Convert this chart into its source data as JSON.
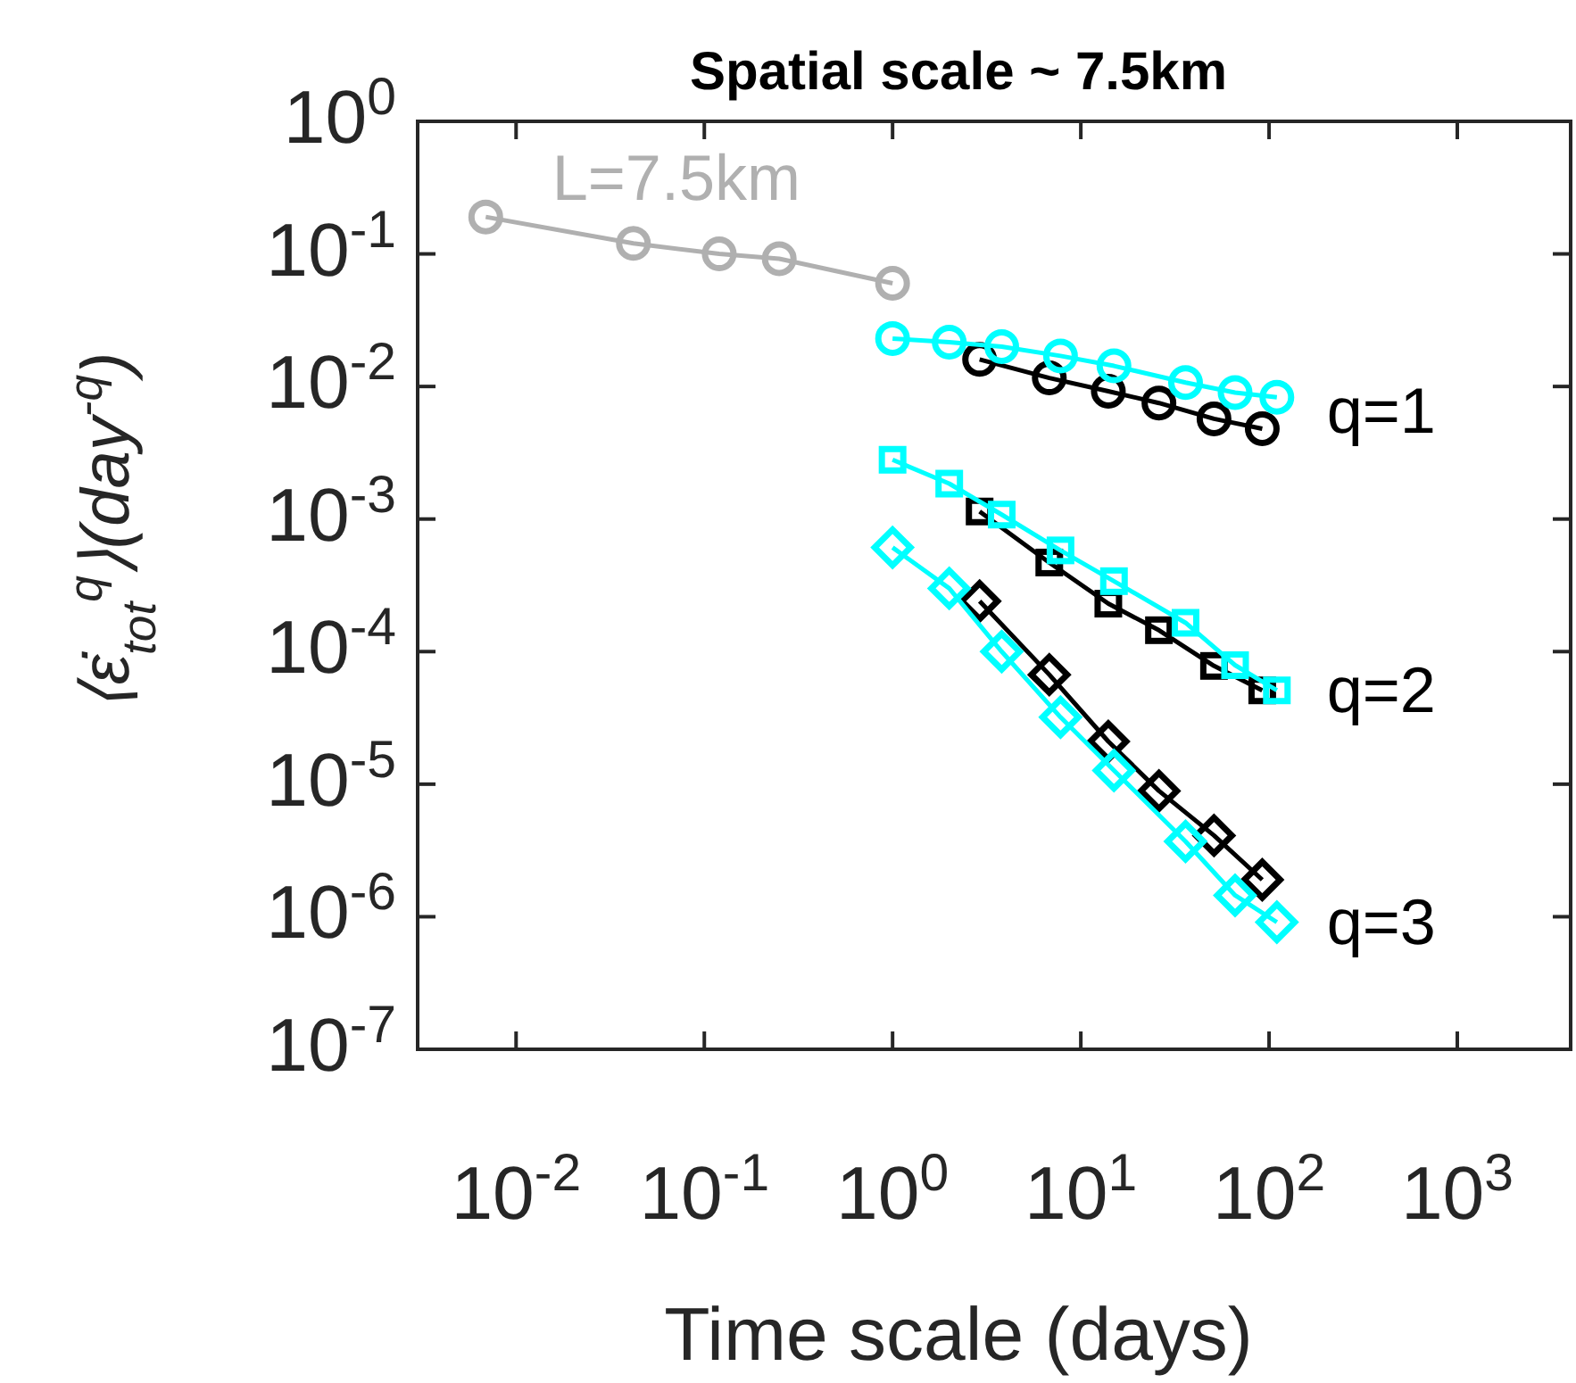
{
  "chart_data": {
    "type": "line",
    "title": "Spatial scale ~ 7.5km",
    "xlabel": "Time scale (days)",
    "ylabel": "⟨ε̇$_{tot}$$^{q}$⟩(day$^{-q}$)",
    "log": "xy",
    "grid": false,
    "line_style": "solid",
    "xlim": [
      0.003,
      4000
    ],
    "ylim": [
      1e-07,
      1
    ],
    "xticks": [
      {
        "value": 0.01,
        "label": "10$^{-2}$"
      },
      {
        "value": 0.1,
        "label": "10$^{-1}$"
      },
      {
        "value": 1,
        "label": "10$^{0}$"
      },
      {
        "value": 10,
        "label": "10$^{1}$"
      },
      {
        "value": 100,
        "label": "10$^{2}$"
      },
      {
        "value": 1000,
        "label": "10$^{3}$"
      }
    ],
    "yticks": [
      {
        "value": 1e-07,
        "label": "10$^{-7}$"
      },
      {
        "value": 1e-06,
        "label": "10$^{-6}$"
      },
      {
        "value": 1e-05,
        "label": "10$^{-5}$"
      },
      {
        "value": 0.0001,
        "label": "10$^{-4}$"
      },
      {
        "value": 0.001,
        "label": "10$^{-3}$"
      },
      {
        "value": 0.01,
        "label": "10$^{-2}$"
      },
      {
        "value": 0.1,
        "label": "10$^{-1}$"
      },
      {
        "value": 1,
        "label": "10$^{0}$"
      }
    ],
    "series": [
      {
        "name": "L=7.5km",
        "color": "#b0b0b0",
        "marker": "circle",
        "x": [
          0.0069,
          0.042,
          0.12,
          0.25,
          1
        ],
        "values": [
          0.19,
          0.12,
          0.1,
          0.092,
          0.06
        ]
      },
      {
        "color": "#000000",
        "marker": "circle",
        "x": [
          2.9,
          6.8,
          14,
          26,
          51,
          92
        ],
        "values": [
          0.016,
          0.0116,
          0.0092,
          0.0075,
          0.0057,
          0.0048
        ]
      },
      {
        "color": "#00ffff",
        "marker": "circle",
        "x": [
          1,
          2,
          3.8,
          7.8,
          15,
          36,
          66,
          110
        ],
        "values": [
          0.023,
          0.0216,
          0.02,
          0.017,
          0.0143,
          0.0107,
          0.009,
          0.0083
        ]
      },
      {
        "color": "#000000",
        "marker": "square",
        "x": [
          2.9,
          6.8,
          14,
          26,
          51,
          92
        ],
        "values": [
          0.00114,
          0.00047,
          0.00023,
          0.000145,
          7.8e-05,
          5.1e-05
        ]
      },
      {
        "color": "#00ffff",
        "marker": "square",
        "x": [
          1,
          2,
          3.8,
          7.8,
          15,
          36,
          66,
          110
        ],
        "values": [
          0.0028,
          0.00185,
          0.00108,
          0.00058,
          0.00034,
          0.000165,
          7.9e-05,
          5.1e-05
        ]
      },
      {
        "color": "#000000",
        "marker": "diamond",
        "x": [
          2.9,
          6.8,
          14,
          26,
          51,
          92
        ],
        "values": [
          0.00024,
          6.7e-05,
          2.1e-05,
          8.9e-06,
          4.1e-06,
          1.9e-06
        ]
      },
      {
        "color": "#00ffff",
        "marker": "diamond",
        "x": [
          1,
          2,
          3.8,
          7.8,
          15,
          36,
          66,
          110
        ],
        "values": [
          0.00061,
          0.0003,
          0.0001,
          3.2e-05,
          1.27e-05,
          3.7e-06,
          1.45e-06,
          9.1e-07
        ]
      }
    ],
    "annotations": [
      "q=1",
      "q=2",
      "q=3"
    ]
  }
}
